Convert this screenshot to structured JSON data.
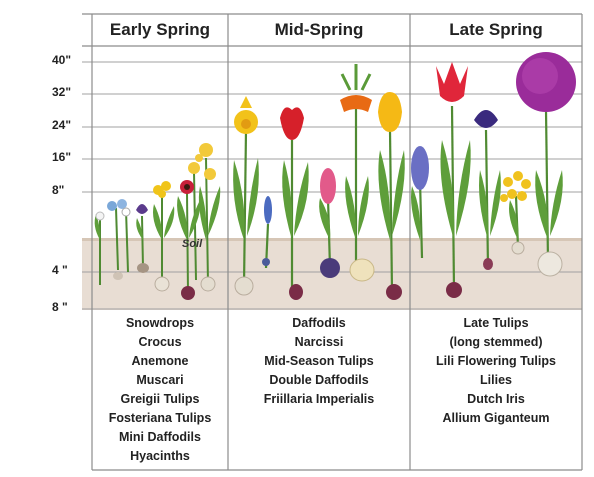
{
  "columns": [
    {
      "title": "Early Spring",
      "plants": [
        "Snowdrops",
        "Crocus",
        "Anemone",
        "Muscari",
        "Greigii Tulips",
        "Fosteriana Tulips",
        "Mini Daffodils",
        "Hyacinths"
      ]
    },
    {
      "title": "Mid-Spring",
      "plants": [
        "Daffodils",
        "Narcissi",
        "Mid-Season Tulips",
        "Double Daffodils",
        "Friillaria Imperialis"
      ]
    },
    {
      "title": "Late Spring",
      "plants": [
        "Late Tulips",
        "(long stemmed)",
        "Lili Flowering Tulips",
        "Lilies",
        "Dutch Iris",
        "Allium Giganteum"
      ]
    }
  ],
  "height_labels": [
    "40\"",
    "32\"",
    "24\"",
    "16\"",
    "8\""
  ],
  "depth_labels": [
    "4 \"",
    "8 \""
  ],
  "soil_label": "Soil",
  "colors": {
    "grid": "#9a9a9a",
    "soil": "#e7dcd2",
    "border": "#888888",
    "stem": "#4f8a32",
    "leaf": "#5a9a38"
  }
}
